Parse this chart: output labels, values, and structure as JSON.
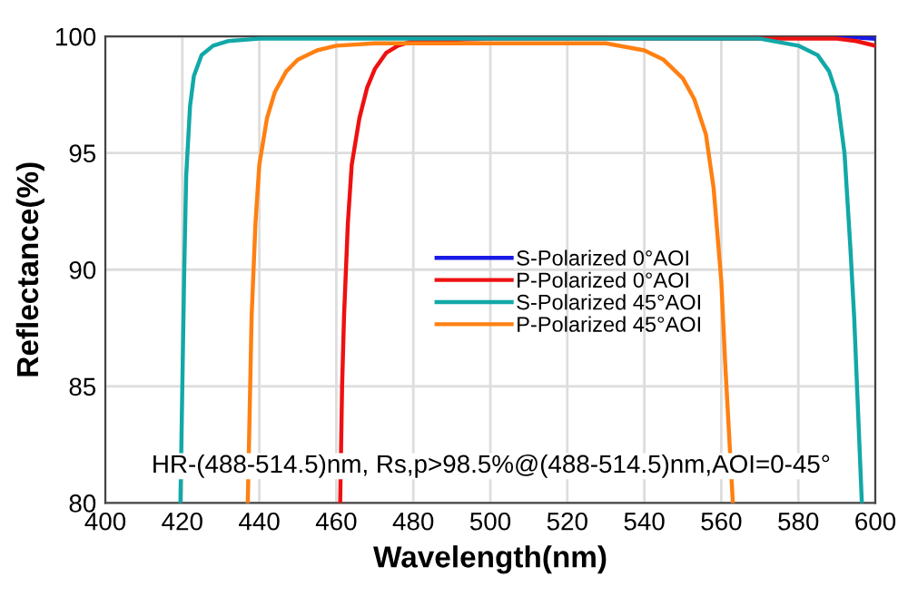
{
  "chart_data": {
    "type": "line",
    "xlabel": "Wavelength(nm)",
    "ylabel": "Reflectance(%)",
    "xlim": [
      400,
      600
    ],
    "xticks": [
      400,
      420,
      440,
      460,
      480,
      500,
      520,
      540,
      560,
      580,
      600
    ],
    "ylim": [
      80,
      100
    ],
    "yticks": [
      80,
      85,
      90,
      95,
      100
    ],
    "grid": true,
    "legend": "right",
    "marker": "none",
    "line_style": "solid",
    "annotations": [
      "HR-(488-514.5)nm, Rs,p>98.5%@(488-514.5)nm,AOI=0-45°"
    ],
    "series": [
      {
        "name": "S-Polarized 0°AOI",
        "color": "#1a1ae6",
        "x": [
          590,
          595,
          600
        ],
        "values": [
          99.95,
          99.95,
          99.9
        ]
      },
      {
        "name": "P-Polarized 0°AOI",
        "color": "#ee1111",
        "x": [
          461,
          461.5,
          462,
          463,
          464,
          466,
          468,
          470,
          473,
          476,
          480,
          500,
          560,
          580,
          590,
          595,
          600
        ],
        "values": [
          80,
          85,
          88,
          92,
          94.5,
          96.5,
          97.8,
          98.6,
          99.3,
          99.6,
          99.8,
          99.9,
          99.9,
          99.9,
          99.9,
          99.8,
          99.6
        ]
      },
      {
        "name": "S-Polarized 45°AOI",
        "color": "#12a8a8",
        "x": [
          419.5,
          420,
          420.5,
          421,
          422,
          423,
          425,
          428,
          432,
          440,
          570,
          580,
          585,
          588,
          590,
          592,
          593.5,
          594.5,
          595.5,
          596.5
        ],
        "values": [
          80,
          85,
          90,
          94,
          97,
          98.3,
          99.2,
          99.6,
          99.8,
          99.9,
          99.9,
          99.6,
          99.2,
          98.5,
          97.5,
          95,
          91,
          88,
          84,
          80
        ]
      },
      {
        "name": "P-Polarized 45°AOI",
        "color": "#ff8012",
        "x": [
          437,
          437.5,
          438,
          439,
          440,
          442,
          444,
          447,
          450,
          455,
          460,
          470,
          530,
          540,
          545,
          550,
          553,
          556,
          558,
          560,
          561,
          562,
          563
        ],
        "values": [
          80,
          84,
          88,
          92,
          94.5,
          96.5,
          97.6,
          98.5,
          99,
          99.4,
          99.6,
          99.7,
          99.7,
          99.4,
          99,
          98.2,
          97.3,
          95.8,
          93.5,
          89.5,
          86,
          83,
          80
        ]
      }
    ]
  }
}
